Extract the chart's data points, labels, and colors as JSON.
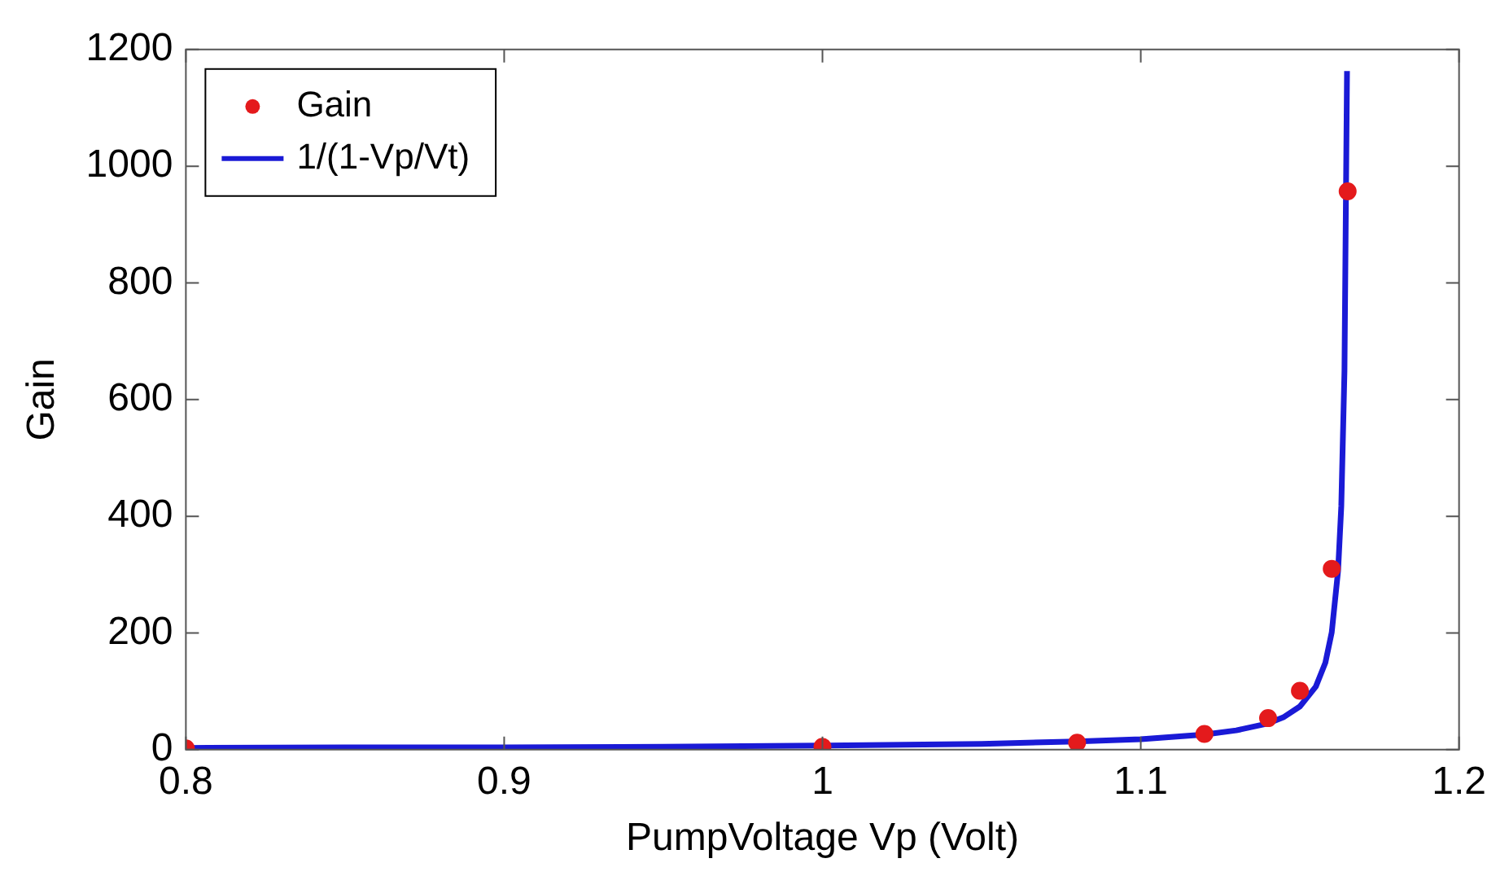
{
  "chart_data": {
    "type": "scatter",
    "xlabel": "PumpVoltage Vp (Volt)",
    "ylabel": "Gain",
    "xlim": [
      0.8,
      1.2
    ],
    "xticks": [
      0.8,
      0.9,
      1,
      1.1,
      1.2
    ],
    "ylim": [
      0,
      1200
    ],
    "yticks": [
      0,
      200,
      400,
      600,
      800,
      1000,
      1200
    ],
    "grid": false,
    "legend": "top left",
    "series": [
      {
        "name": "Gain",
        "color": "#e41a1c",
        "marker": "circle",
        "x": [
          0.8,
          1.0,
          1.08,
          1.12,
          1.14,
          1.15,
          1.16,
          1.165
        ],
        "values": [
          2,
          5,
          12,
          27,
          54,
          101,
          310,
          957
        ]
      },
      {
        "name": "1/(1-Vp/Vt)",
        "type": "line",
        "color": "#1a1ad6",
        "marker": "none",
        "line_style": "solid",
        "x": [
          0.8,
          0.85,
          0.9,
          0.95,
          1.0,
          1.05,
          1.08,
          1.1,
          1.12,
          1.13,
          1.14,
          1.145,
          1.15,
          1.155,
          1.158,
          1.16,
          1.162,
          1.163,
          1.164,
          1.1648
        ],
        "values": [
          3,
          4,
          4,
          5,
          7,
          10,
          14,
          18,
          26,
          33,
          45,
          56,
          74,
          108,
          149,
          201,
          307,
          417,
          649,
          1163
        ]
      }
    ]
  }
}
